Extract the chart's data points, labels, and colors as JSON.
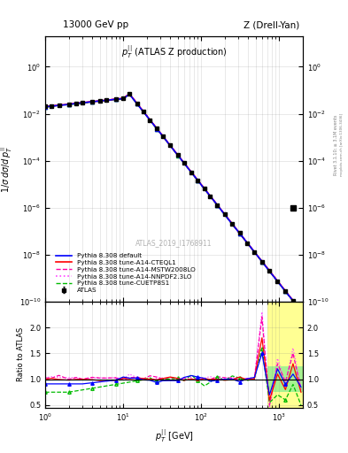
{
  "title_left": "13000 GeV pp",
  "title_right": "Z (Drell-Yan)",
  "sub_ylabel": "Ratio to ATLAS",
  "xlabel": "p_T^{||} [GeV]",
  "inner_title": "p_T^{||} (ATLAS Z production)",
  "watermark": "ATLAS_2019_I1768911",
  "right_label": "Rivet 3.1.10; ≥ 3.1M events",
  "right_label2": "mcplots.cern.ch [arXiv:1306.3436]",
  "ylim_main": [
    1e-10,
    20
  ],
  "ylim_ratio": [
    0.45,
    2.5
  ],
  "xmin": 1,
  "xmax": 2000,
  "background_color": "#ffffff",
  "legend_entries": [
    "ATLAS",
    "Pythia 8.308 default",
    "Pythia 8.308 tune-A14-CTEQL1",
    "Pythia 8.308 tune-A14-MSTW2008LO",
    "Pythia 8.308 tune-A14-NNPDF2.3LO",
    "Pythia 8.308 tune-CUETP8S1"
  ],
  "colors": {
    "ATLAS": "#000000",
    "default": "#0000ff",
    "CTEQL1": "#ff0000",
    "MSTW2008LO": "#ff00aa",
    "NNPDF2_3LO": "#ff44ff",
    "CUETP8S1": "#00bb00"
  }
}
